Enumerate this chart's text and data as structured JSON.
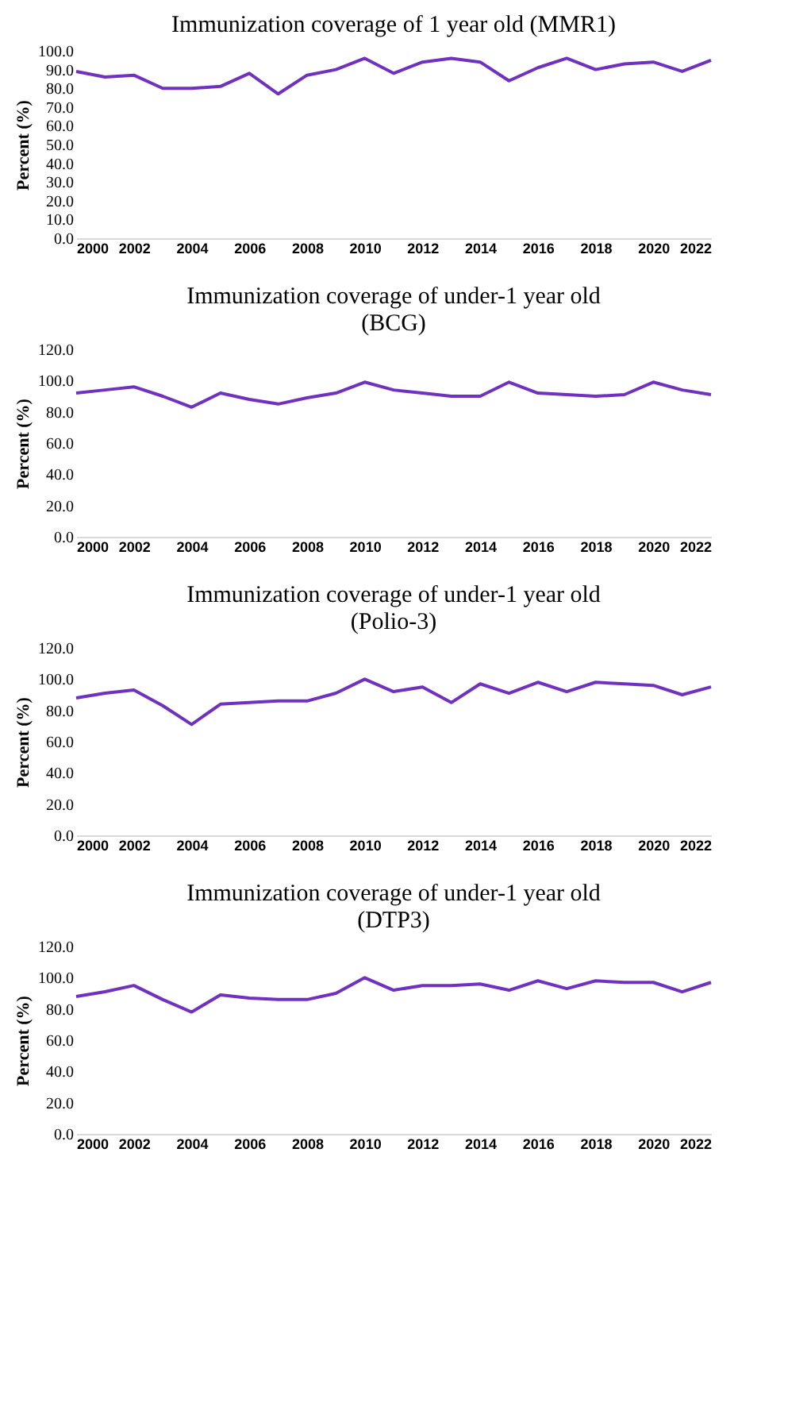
{
  "chart_data": [
    {
      "type": "line",
      "title": "Immunization coverage of 1 year old (MMR1)",
      "ylabel": "Percent (%)",
      "x": [
        2000,
        2001,
        2002,
        2003,
        2004,
        2005,
        2006,
        2007,
        2008,
        2009,
        2010,
        2011,
        2012,
        2013,
        2014,
        2015,
        2016,
        2017,
        2018,
        2019,
        2020,
        2021,
        2022
      ],
      "series": [
        {
          "color": "#7030c0",
          "values": [
            89,
            86,
            87,
            80,
            80,
            81,
            88,
            77,
            87,
            90,
            96,
            88,
            94,
            96,
            94,
            84,
            91,
            96,
            90,
            93,
            94,
            89,
            95
          ]
        }
      ],
      "xlim": [
        2000,
        2022
      ],
      "xticks": [
        2000,
        2002,
        2004,
        2006,
        2008,
        2010,
        2012,
        2014,
        2016,
        2018,
        2020,
        2022
      ],
      "ylim": [
        0,
        100
      ],
      "yticks": [
        {
          "value": 0,
          "label": "0.0"
        },
        {
          "value": 10,
          "label": "10.0"
        },
        {
          "value": 20,
          "label": "20.0"
        },
        {
          "value": 30,
          "label": "30.0"
        },
        {
          "value": 40,
          "label": "40.0"
        },
        {
          "value": 50,
          "label": "50.0"
        },
        {
          "value": 60,
          "label": "60.0"
        },
        {
          "value": 70,
          "label": "70.0"
        },
        {
          "value": 80,
          "label": "80.0"
        },
        {
          "value": 90,
          "label": "90.0"
        },
        {
          "value": 100,
          "label": "100.0"
        }
      ],
      "grid": false,
      "legend": false,
      "marker": "none",
      "line_style": "solid"
    },
    {
      "type": "line",
      "title": "Immunization coverage of  under-1 year old\n(BCG)",
      "ylabel": "Percent (%)",
      "x": [
        2000,
        2001,
        2002,
        2003,
        2004,
        2005,
        2006,
        2007,
        2008,
        2009,
        2010,
        2011,
        2012,
        2013,
        2014,
        2015,
        2016,
        2017,
        2018,
        2019,
        2020,
        2021,
        2022
      ],
      "series": [
        {
          "color": "#7030c0",
          "values": [
            92,
            94,
            96,
            90,
            83,
            92,
            88,
            85,
            89,
            92,
            99,
            94,
            92,
            90,
            90,
            99,
            92,
            91,
            90,
            91,
            99,
            94,
            91
          ]
        }
      ],
      "xlim": [
        2000,
        2022
      ],
      "xticks": [
        2000,
        2002,
        2004,
        2006,
        2008,
        2010,
        2012,
        2014,
        2016,
        2018,
        2020,
        2022
      ],
      "ylim": [
        0,
        120
      ],
      "yticks": [
        {
          "value": 0,
          "label": "0.0"
        },
        {
          "value": 20,
          "label": "20.0"
        },
        {
          "value": 40,
          "label": "40.0"
        },
        {
          "value": 60,
          "label": "60.0"
        },
        {
          "value": 80,
          "label": "80.0"
        },
        {
          "value": 100,
          "label": "100.0"
        },
        {
          "value": 120,
          "label": "120.0"
        }
      ],
      "grid": false,
      "legend": false,
      "marker": "none",
      "line_style": "solid"
    },
    {
      "type": "line",
      "title": "Immunization coverage of  under-1 year old\n(Polio-3)",
      "ylabel": "Percent (%)",
      "x": [
        2000,
        2001,
        2002,
        2003,
        2004,
        2005,
        2006,
        2007,
        2008,
        2009,
        2010,
        2011,
        2012,
        2013,
        2014,
        2015,
        2016,
        2017,
        2018,
        2019,
        2020,
        2021,
        2022
      ],
      "series": [
        {
          "color": "#7030c0",
          "values": [
            88,
            91,
            93,
            83,
            71,
            84,
            85,
            86,
            86,
            91,
            100,
            92,
            95,
            85,
            97,
            91,
            98,
            92,
            98,
            97,
            96,
            90,
            95
          ]
        }
      ],
      "xlim": [
        2000,
        2022
      ],
      "xticks": [
        2000,
        2002,
        2004,
        2006,
        2008,
        2010,
        2012,
        2014,
        2016,
        2018,
        2020,
        2022
      ],
      "ylim": [
        0,
        120
      ],
      "yticks": [
        {
          "value": 0,
          "label": "0.0"
        },
        {
          "value": 20,
          "label": "20.0"
        },
        {
          "value": 40,
          "label": "40.0"
        },
        {
          "value": 60,
          "label": "60.0"
        },
        {
          "value": 80,
          "label": "80.0"
        },
        {
          "value": 100,
          "label": "100.0"
        },
        {
          "value": 120,
          "label": "120.0"
        }
      ],
      "grid": false,
      "legend": false,
      "marker": "none",
      "line_style": "solid"
    },
    {
      "type": "line",
      "title": "Immunization coverage of  under-1 year old\n(DTP3)",
      "ylabel": "Percent (%)",
      "x": [
        2000,
        2001,
        2002,
        2003,
        2004,
        2005,
        2006,
        2007,
        2008,
        2009,
        2010,
        2011,
        2012,
        2013,
        2014,
        2015,
        2016,
        2017,
        2018,
        2019,
        2020,
        2021,
        2022
      ],
      "series": [
        {
          "color": "#7030c0",
          "values": [
            88,
            91,
            95,
            86,
            78,
            89,
            87,
            86,
            86,
            90,
            100,
            92,
            95,
            95,
            96,
            92,
            98,
            93,
            98,
            97,
            97,
            91,
            97
          ]
        }
      ],
      "xlim": [
        2000,
        2022
      ],
      "xticks": [
        2000,
        2002,
        2004,
        2006,
        2008,
        2010,
        2012,
        2014,
        2016,
        2018,
        2020,
        2022
      ],
      "ylim": [
        0,
        120
      ],
      "yticks": [
        {
          "value": 0,
          "label": "0.0"
        },
        {
          "value": 20,
          "label": "20.0"
        },
        {
          "value": 40,
          "label": "40.0"
        },
        {
          "value": 60,
          "label": "60.0"
        },
        {
          "value": 80,
          "label": "80.0"
        },
        {
          "value": 100,
          "label": "100.0"
        },
        {
          "value": 120,
          "label": "120.0"
        }
      ],
      "grid": false,
      "legend": false,
      "marker": "none",
      "line_style": "solid"
    }
  ]
}
